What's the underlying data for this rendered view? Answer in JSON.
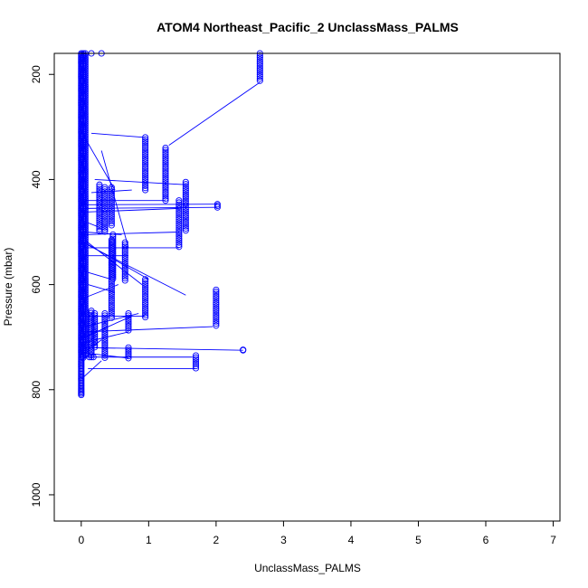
{
  "chart_data": {
    "type": "scatter",
    "title": "ATOM4 Northeast_Pacific_2 UnclassMass_PALMS",
    "xlabel": "UnclassMass_PALMS",
    "ylabel": "Pressure (mbar)",
    "xlim": [
      -0.4,
      7.1
    ],
    "ylim": [
      1050,
      160
    ],
    "y_reversed": true,
    "x_ticks": [
      "0",
      "1",
      "2",
      "3",
      "4",
      "5",
      "6",
      "7"
    ],
    "y_ticks": [
      "200",
      "400",
      "600",
      "800",
      "1000"
    ],
    "grid": false,
    "legend": "none",
    "marker": "open-circle",
    "color": "#0000ff",
    "columns": [
      {
        "x": 0.0,
        "p0": 160,
        "p1": 810,
        "step": 2.5
      },
      {
        "x": 0.03,
        "p0": 160,
        "p1": 740,
        "step": 3.0
      },
      {
        "x": 0.06,
        "p0": 160,
        "p1": 735,
        "step": 3.5
      },
      {
        "x": 0.15,
        "p0": 650,
        "p1": 740,
        "step": 4
      },
      {
        "x": 0.2,
        "p0": 655,
        "p1": 720,
        "step": 4
      },
      {
        "x": 0.27,
        "p0": 410,
        "p1": 500,
        "step": 4
      },
      {
        "x": 0.35,
        "p0": 415,
        "p1": 500,
        "step": 4
      },
      {
        "x": 0.35,
        "p0": 655,
        "p1": 740,
        "step": 4
      },
      {
        "x": 0.45,
        "p0": 415,
        "p1": 490,
        "step": 4
      },
      {
        "x": 0.45,
        "p0": 515,
        "p1": 665,
        "step": 4
      },
      {
        "x": 0.47,
        "p0": 505,
        "p1": 590,
        "step": 4
      },
      {
        "x": 0.65,
        "p0": 520,
        "p1": 595,
        "step": 4
      },
      {
        "x": 0.7,
        "p0": 655,
        "p1": 690,
        "step": 4
      },
      {
        "x": 0.7,
        "p0": 720,
        "p1": 740,
        "step": 4
      },
      {
        "x": 0.95,
        "p0": 320,
        "p1": 420,
        "step": 4
      },
      {
        "x": 0.95,
        "p0": 590,
        "p1": 665,
        "step": 4
      },
      {
        "x": 1.25,
        "p0": 340,
        "p1": 440,
        "step": 4
      },
      {
        "x": 1.45,
        "p0": 440,
        "p1": 530,
        "step": 4
      },
      {
        "x": 1.55,
        "p0": 405,
        "p1": 500,
        "step": 4
      },
      {
        "x": 1.7,
        "p0": 735,
        "p1": 760,
        "step": 4
      },
      {
        "x": 2.0,
        "p0": 610,
        "p1": 680,
        "step": 4
      },
      {
        "x": 2.65,
        "p0": 160,
        "p1": 215,
        "step": 4
      }
    ],
    "extra_points": [
      {
        "x": 0.3,
        "y": 160
      },
      {
        "x": 0.15,
        "y": 160
      },
      {
        "x": 0.12,
        "y": 738
      },
      {
        "x": 0.18,
        "y": 738
      },
      {
        "x": 2.02,
        "y": 447
      },
      {
        "x": 2.02,
        "y": 453
      },
      {
        "x": 2.02,
        "y": 450
      },
      {
        "x": 2.4,
        "y": 725
      },
      {
        "x": 2.4,
        "y": 724
      }
    ],
    "segments": [
      [
        0.15,
        312,
        0.95,
        320
      ],
      [
        0.05,
        320,
        0.5,
        420
      ],
      [
        0.3,
        345,
        0.7,
        530
      ],
      [
        0.2,
        400,
        1.55,
        410
      ],
      [
        0.15,
        425,
        0.75,
        420
      ],
      [
        0.05,
        440,
        1.25,
        440
      ],
      [
        0.05,
        448,
        2.02,
        447
      ],
      [
        0.05,
        455,
        2.02,
        453
      ],
      [
        0.05,
        462,
        1.45,
        455
      ],
      [
        0.05,
        480,
        0.25,
        490
      ],
      [
        0.05,
        500,
        0.6,
        505
      ],
      [
        0.05,
        505,
        1.45,
        500
      ],
      [
        0.05,
        515,
        0.9,
        600
      ],
      [
        0.05,
        520,
        1.0,
        590
      ],
      [
        0.1,
        525,
        1.55,
        620
      ],
      [
        0.05,
        530,
        1.45,
        530
      ],
      [
        0.05,
        545,
        0.7,
        545
      ],
      [
        0.05,
        575,
        0.45,
        590
      ],
      [
        0.1,
        600,
        0.5,
        615
      ],
      [
        0.05,
        625,
        0.55,
        600
      ],
      [
        0.05,
        660,
        0.95,
        660
      ],
      [
        0.05,
        680,
        0.85,
        655
      ],
      [
        0.05,
        700,
        0.75,
        660
      ],
      [
        0.05,
        690,
        1.95,
        680
      ],
      [
        0.05,
        710,
        0.7,
        690
      ],
      [
        0.1,
        725,
        0.3,
        705
      ],
      [
        0.05,
        720,
        2.4,
        725
      ],
      [
        0.05,
        738,
        1.65,
        738
      ],
      [
        0.1,
        760,
        1.7,
        760
      ],
      [
        0.0,
        780,
        0.3,
        745
      ],
      [
        0.05,
        730,
        0.7,
        740
      ],
      [
        1.3,
        335,
        2.65,
        215
      ]
    ]
  }
}
